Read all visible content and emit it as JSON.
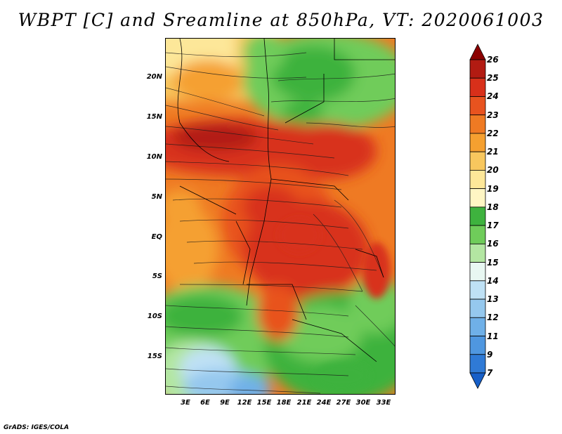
{
  "title": "WBPT [C] and Sreamline at 850hPa, VT: 2020061003",
  "credit": "GrADS: IGES/COLA",
  "map": {
    "y_ticks": [
      "20N",
      "15N",
      "10N",
      "5N",
      "EQ",
      "5S",
      "10S",
      "15S"
    ],
    "x_ticks": [
      "3E",
      "6E",
      "9E",
      "12E",
      "15E",
      "18E",
      "21E",
      "24E",
      "27E",
      "30E",
      "33E"
    ]
  },
  "colorbar": {
    "labels": [
      "26",
      "25",
      "24",
      "23",
      "22",
      "21",
      "20",
      "19",
      "18",
      "17",
      "16",
      "15",
      "14",
      "13",
      "12",
      "11",
      "9",
      "7"
    ],
    "colors": [
      "#8b0000",
      "#b21b12",
      "#d8301a",
      "#e8531f",
      "#ef7a23",
      "#f5a030",
      "#f8c75e",
      "#fde799",
      "#fff6c4",
      "#3eb23e",
      "#6fcc5a",
      "#b3e6a2",
      "#e8f7f2",
      "#bfe1f5",
      "#95c8ee",
      "#6fb0e8",
      "#4f97e0",
      "#2f7ad6",
      "#175fc8"
    ]
  }
}
